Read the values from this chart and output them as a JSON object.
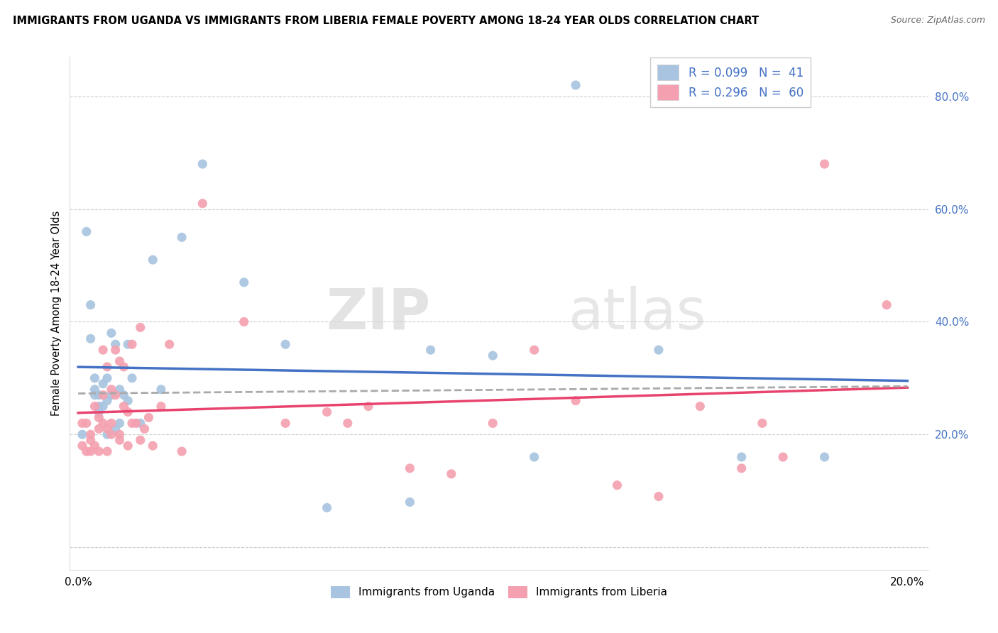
{
  "title": "IMMIGRANTS FROM UGANDA VS IMMIGRANTS FROM LIBERIA FEMALE POVERTY AMONG 18-24 YEAR OLDS CORRELATION CHART",
  "source": "Source: ZipAtlas.com",
  "ylabel": "Female Poverty Among 18-24 Year Olds",
  "xlim": [
    -0.002,
    0.205
  ],
  "ylim": [
    -0.04,
    0.87
  ],
  "y_ticks": [
    0.0,
    0.2,
    0.4,
    0.6,
    0.8
  ],
  "y_tick_labels": [
    "",
    "20.0%",
    "40.0%",
    "60.0%",
    "80.0%"
  ],
  "x_ticks": [
    0.0,
    0.05,
    0.1,
    0.15,
    0.2
  ],
  "x_tick_labels": [
    "0.0%",
    "",
    "",
    "",
    "20.0%"
  ],
  "legend_r_uganda": "R = 0.099",
  "legend_n_uganda": "N =  41",
  "legend_r_liberia": "R = 0.296",
  "legend_n_liberia": "N =  60",
  "color_uganda": "#a8c4e0",
  "color_liberia": "#f4a0b0",
  "color_trendline_uganda": "#4472c4",
  "color_trendline_liberia": "#e8436e",
  "color_trendline_combined": "#aaaaaa",
  "watermark_zip": "ZIP",
  "watermark_atlas": "atlas",
  "uganda_x": [
    0.001,
    0.002,
    0.003,
    0.003,
    0.004,
    0.004,
    0.004,
    0.005,
    0.005,
    0.005,
    0.006,
    0.006,
    0.007,
    0.007,
    0.007,
    0.008,
    0.008,
    0.009,
    0.009,
    0.01,
    0.01,
    0.011,
    0.012,
    0.012,
    0.013,
    0.015,
    0.018,
    0.02,
    0.025,
    0.03,
    0.04,
    0.05,
    0.06,
    0.08,
    0.085,
    0.1,
    0.11,
    0.12,
    0.14,
    0.16,
    0.18
  ],
  "uganda_y": [
    0.2,
    0.56,
    0.43,
    0.37,
    0.28,
    0.3,
    0.27,
    0.24,
    0.27,
    0.25,
    0.29,
    0.25,
    0.26,
    0.3,
    0.2,
    0.38,
    0.27,
    0.36,
    0.21,
    0.28,
    0.22,
    0.27,
    0.26,
    0.36,
    0.3,
    0.22,
    0.51,
    0.28,
    0.55,
    0.68,
    0.47,
    0.36,
    0.07,
    0.08,
    0.35,
    0.34,
    0.16,
    0.82,
    0.35,
    0.16,
    0.16
  ],
  "liberia_x": [
    0.001,
    0.001,
    0.002,
    0.002,
    0.003,
    0.003,
    0.003,
    0.004,
    0.004,
    0.005,
    0.005,
    0.005,
    0.006,
    0.006,
    0.006,
    0.007,
    0.007,
    0.007,
    0.008,
    0.008,
    0.008,
    0.009,
    0.009,
    0.01,
    0.01,
    0.01,
    0.011,
    0.011,
    0.012,
    0.012,
    0.013,
    0.013,
    0.014,
    0.015,
    0.015,
    0.016,
    0.017,
    0.018,
    0.02,
    0.022,
    0.025,
    0.03,
    0.04,
    0.05,
    0.06,
    0.065,
    0.07,
    0.08,
    0.09,
    0.1,
    0.11,
    0.12,
    0.13,
    0.14,
    0.15,
    0.16,
    0.165,
    0.17,
    0.18,
    0.195
  ],
  "liberia_y": [
    0.22,
    0.18,
    0.17,
    0.22,
    0.2,
    0.19,
    0.17,
    0.25,
    0.18,
    0.23,
    0.21,
    0.17,
    0.22,
    0.35,
    0.27,
    0.21,
    0.32,
    0.17,
    0.28,
    0.22,
    0.2,
    0.35,
    0.27,
    0.33,
    0.2,
    0.19,
    0.32,
    0.25,
    0.24,
    0.18,
    0.36,
    0.22,
    0.22,
    0.39,
    0.19,
    0.21,
    0.23,
    0.18,
    0.25,
    0.36,
    0.17,
    0.61,
    0.4,
    0.22,
    0.24,
    0.22,
    0.25,
    0.14,
    0.13,
    0.22,
    0.35,
    0.26,
    0.11,
    0.09,
    0.25,
    0.14,
    0.22,
    0.16,
    0.68,
    0.43
  ]
}
